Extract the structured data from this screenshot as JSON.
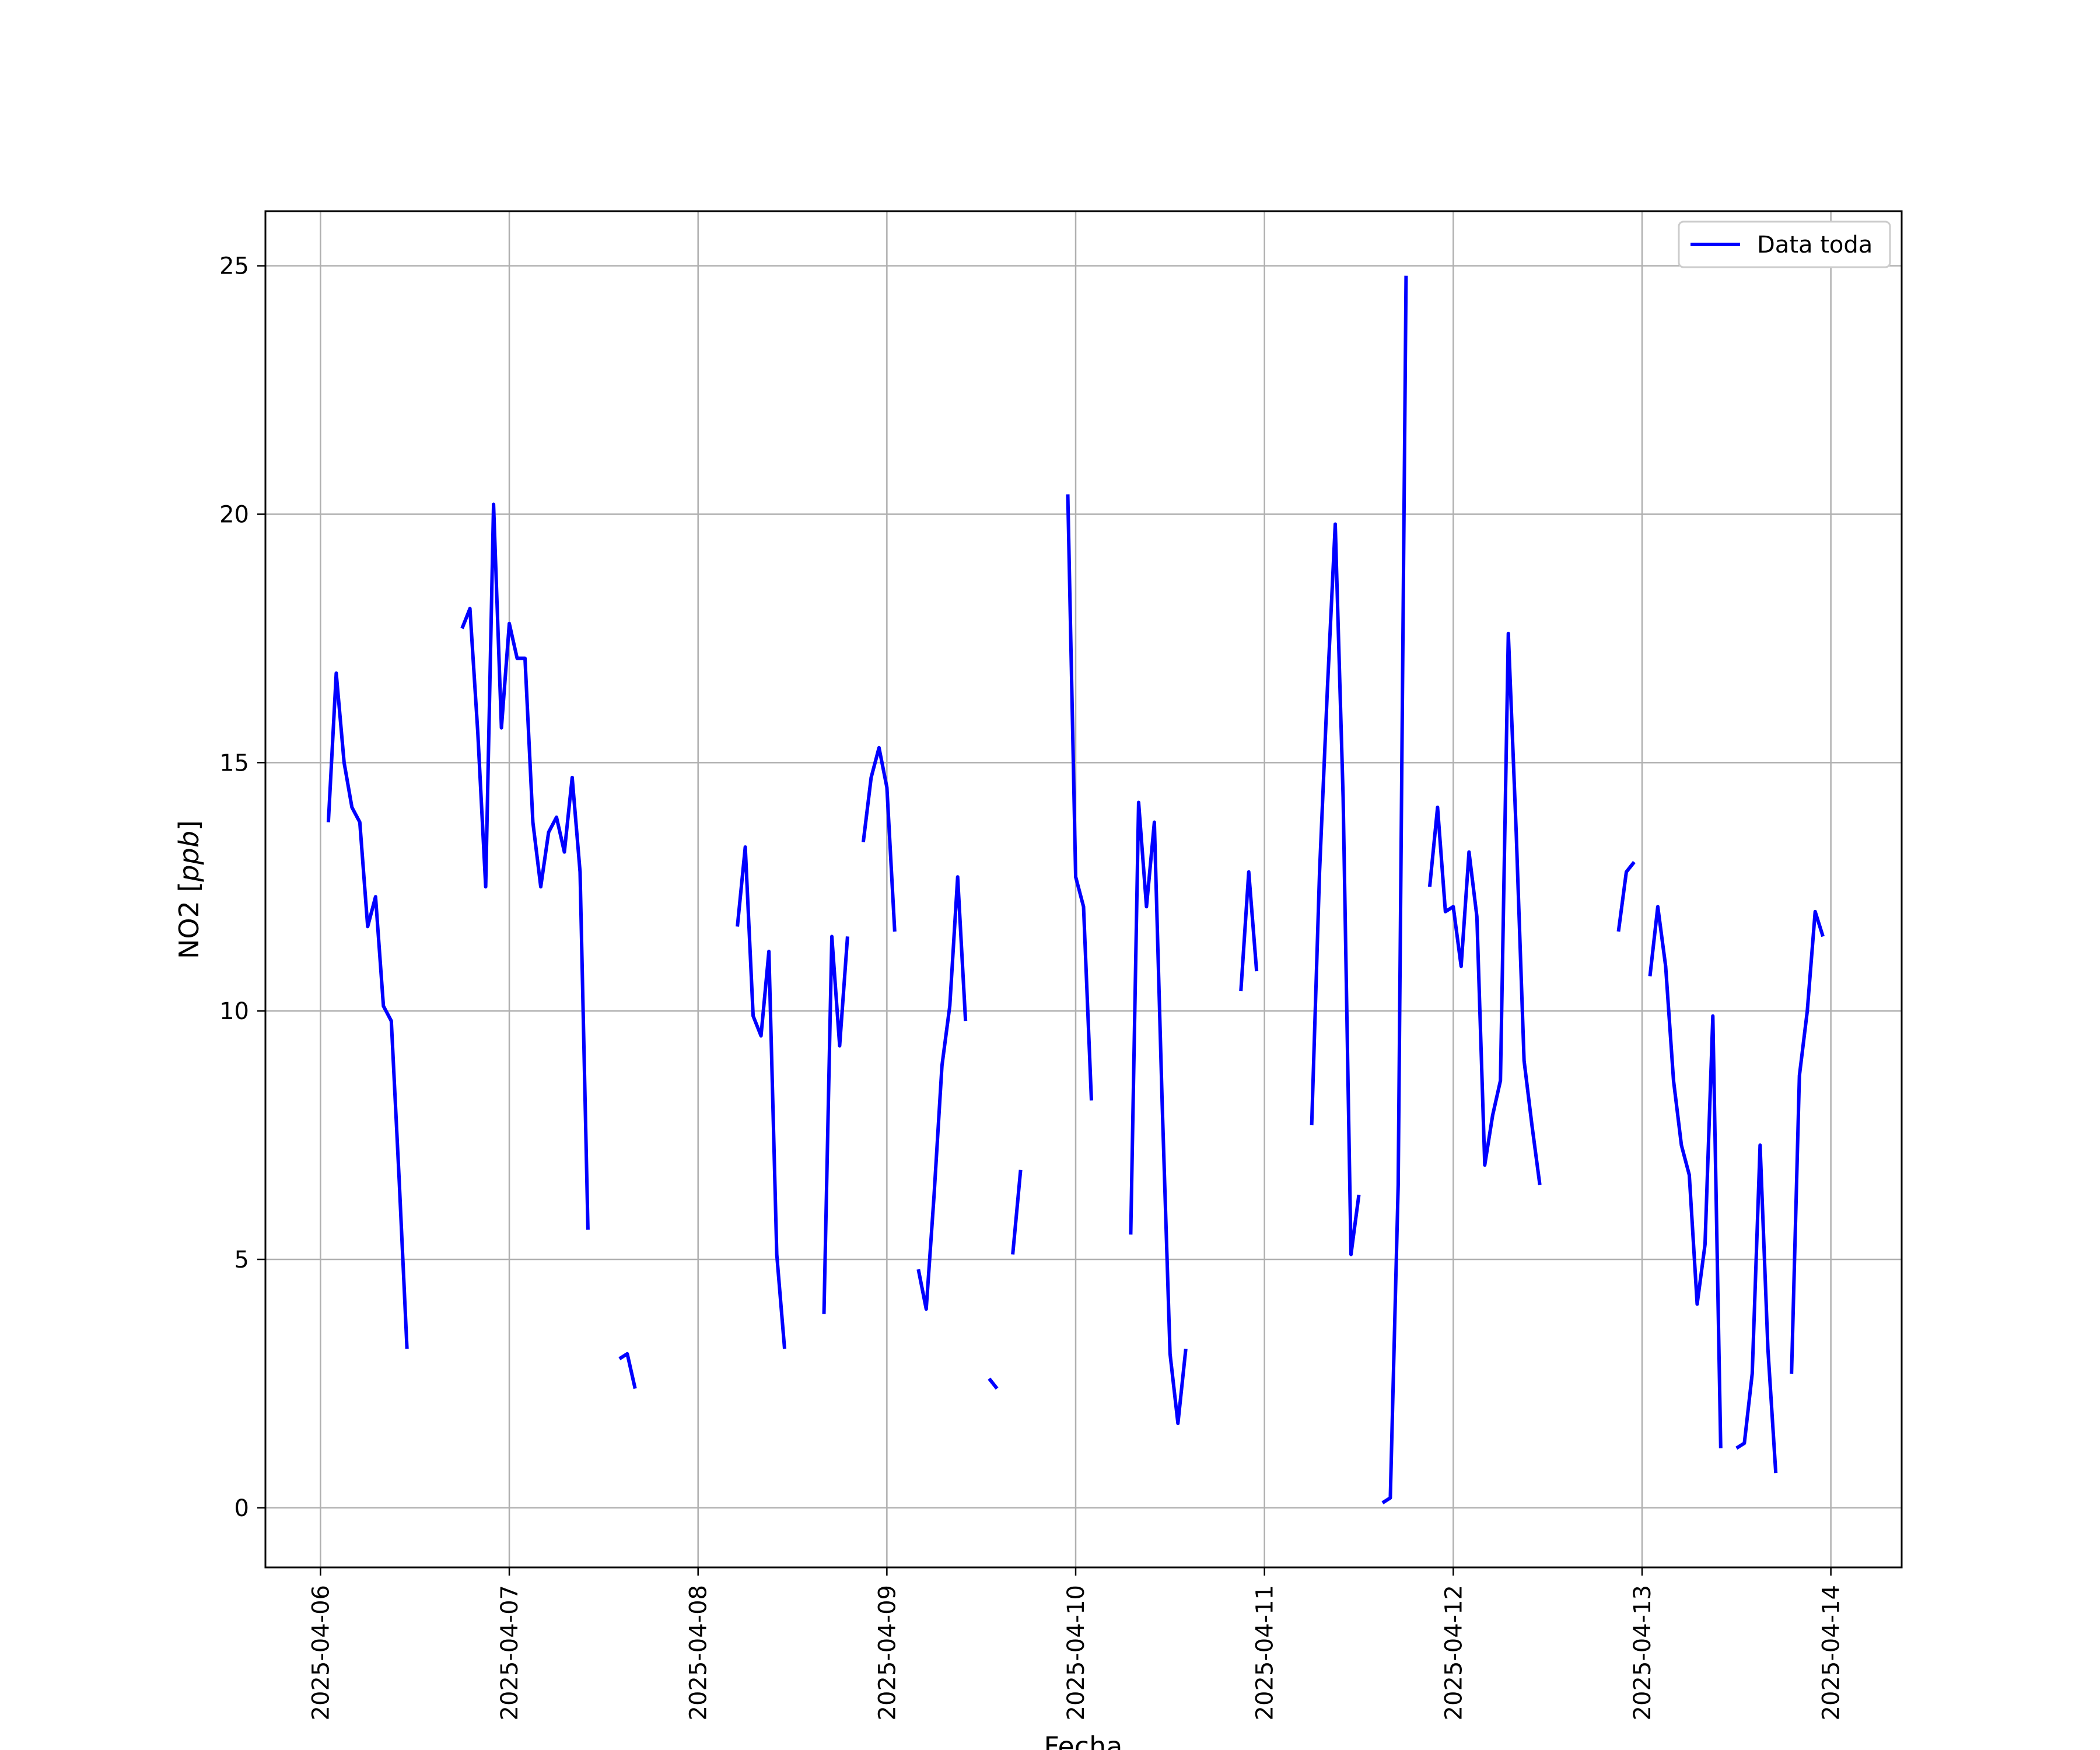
{
  "chart_data": {
    "type": "line",
    "title": "",
    "xlabel": "Fecha",
    "ylabel": "NO2 [ppb]",
    "ylabel_parts": {
      "main": "NO2 [",
      "unit": "ppb",
      "close": "]"
    },
    "xlim": [
      "2025-04-05 17:00",
      "2025-04-14 09:00"
    ],
    "ylim": [
      -1.2,
      26.1
    ],
    "x_ticks": [
      "2025-04-06",
      "2025-04-07",
      "2025-04-08",
      "2025-04-09",
      "2025-04-10",
      "2025-04-11",
      "2025-04-12",
      "2025-04-13",
      "2025-04-14"
    ],
    "y_ticks": [
      0,
      5,
      10,
      15,
      20,
      25
    ],
    "grid": true,
    "legend_position": "top-right",
    "series": [
      {
        "name": "Data toda",
        "color": "#0000ff",
        "segments": [
          [
            [
              "2025-04-06 01:00",
              13.8
            ],
            [
              "2025-04-06 02:00",
              16.8
            ],
            [
              "2025-04-06 03:00",
              15.0
            ],
            [
              "2025-04-06 04:00",
              14.1
            ],
            [
              "2025-04-06 05:00",
              13.8
            ],
            [
              "2025-04-06 06:00",
              11.7
            ],
            [
              "2025-04-06 07:00",
              12.3
            ],
            [
              "2025-04-06 08:00",
              10.1
            ],
            [
              "2025-04-06 09:00",
              9.8
            ],
            [
              "2025-04-06 10:00",
              6.6
            ],
            [
              "2025-04-06 11:00",
              3.2
            ]
          ],
          [
            [
              "2025-04-06 18:00",
              17.7
            ],
            [
              "2025-04-06 19:00",
              18.1
            ],
            [
              "2025-04-06 20:00",
              15.6
            ],
            [
              "2025-04-06 21:00",
              12.5
            ],
            [
              "2025-04-06 22:00",
              20.2
            ],
            [
              "2025-04-06 23:00",
              15.7
            ],
            [
              "2025-04-07 00:00",
              17.8
            ],
            [
              "2025-04-07 01:00",
              17.1
            ],
            [
              "2025-04-07 02:00",
              17.1
            ],
            [
              "2025-04-07 03:00",
              13.8
            ],
            [
              "2025-04-07 04:00",
              12.5
            ],
            [
              "2025-04-07 05:00",
              13.6
            ],
            [
              "2025-04-07 06:00",
              13.9
            ],
            [
              "2025-04-07 07:00",
              13.2
            ],
            [
              "2025-04-07 08:00",
              14.7
            ],
            [
              "2025-04-07 09:00",
              12.8
            ],
            [
              "2025-04-07 10:00",
              5.6
            ]
          ],
          [
            [
              "2025-04-07 14:00",
              3.0
            ],
            [
              "2025-04-07 15:00",
              3.1
            ],
            [
              "2025-04-07 16:00",
              2.4
            ]
          ],
          [
            [
              "2025-04-08 05:00",
              11.7
            ],
            [
              "2025-04-08 06:00",
              13.3
            ],
            [
              "2025-04-08 07:00",
              9.9
            ],
            [
              "2025-04-08 08:00",
              9.5
            ],
            [
              "2025-04-08 09:00",
              11.2
            ],
            [
              "2025-04-08 10:00",
              5.1
            ],
            [
              "2025-04-08 11:00",
              3.2
            ]
          ],
          [
            [
              "2025-04-08 16:00",
              3.9
            ],
            [
              "2025-04-08 17:00",
              11.5
            ],
            [
              "2025-04-08 18:00",
              9.3
            ],
            [
              "2025-04-08 19:00",
              11.5
            ]
          ],
          [
            [
              "2025-04-08 21:00",
              13.4
            ],
            [
              "2025-04-08 22:00",
              14.7
            ],
            [
              "2025-04-08 23:00",
              15.3
            ],
            [
              "2025-04-09 00:00",
              14.5
            ],
            [
              "2025-04-09 01:00",
              11.6
            ]
          ],
          [
            [
              "2025-04-09 04:00",
              4.8
            ],
            [
              "2025-04-09 05:00",
              4.0
            ],
            [
              "2025-04-09 06:00",
              6.3
            ],
            [
              "2025-04-09 07:00",
              8.9
            ],
            [
              "2025-04-09 08:00",
              10.1
            ],
            [
              "2025-04-09 09:00",
              12.7
            ],
            [
              "2025-04-09 10:00",
              9.8
            ]
          ],
          [
            [
              "2025-04-09 13:00",
              2.6
            ],
            [
              "2025-04-09 14:00",
              2.4
            ]
          ],
          [
            [
              "2025-04-09 16:00",
              5.1
            ],
            [
              "2025-04-09 17:00",
              6.8
            ]
          ],
          [
            [
              "2025-04-09 23:00",
              20.4
            ],
            [
              "2025-04-10 00:00",
              12.7
            ],
            [
              "2025-04-10 01:00",
              12.1
            ],
            [
              "2025-04-10 02:00",
              8.2
            ]
          ],
          [
            [
              "2025-04-10 07:00",
              5.5
            ],
            [
              "2025-04-10 08:00",
              14.2
            ],
            [
              "2025-04-10 09:00",
              12.1
            ],
            [
              "2025-04-10 10:00",
              13.8
            ],
            [
              "2025-04-10 11:00",
              8.1
            ],
            [
              "2025-04-10 12:00",
              3.1
            ],
            [
              "2025-04-10 13:00",
              1.7
            ],
            [
              "2025-04-10 14:00",
              3.2
            ]
          ],
          [
            [
              "2025-04-10 21:00",
              10.4
            ],
            [
              "2025-04-10 22:00",
              12.8
            ],
            [
              "2025-04-10 23:00",
              10.8
            ]
          ],
          [
            [
              "2025-04-11 06:00",
              7.7
            ],
            [
              "2025-04-11 07:00",
              12.8
            ],
            [
              "2025-04-11 08:00",
              16.5
            ],
            [
              "2025-04-11 09:00",
              19.8
            ],
            [
              "2025-04-11 10:00",
              14.3
            ],
            [
              "2025-04-11 11:00",
              5.1
            ],
            [
              "2025-04-11 12:00",
              6.3
            ]
          ],
          [
            [
              "2025-04-11 15:00",
              0.1
            ],
            [
              "2025-04-11 16:00",
              0.2
            ],
            [
              "2025-04-11 17:00",
              6.5
            ],
            [
              "2025-04-11 18:00",
              24.8
            ]
          ],
          [
            [
              "2025-04-11 21:00",
              12.5
            ],
            [
              "2025-04-11 22:00",
              14.1
            ],
            [
              "2025-04-11 23:00",
              12.0
            ],
            [
              "2025-04-12 00:00",
              12.1
            ],
            [
              "2025-04-12 01:00",
              10.9
            ],
            [
              "2025-04-12 02:00",
              13.2
            ],
            [
              "2025-04-12 03:00",
              11.9
            ],
            [
              "2025-04-12 04:00",
              6.9
            ],
            [
              "2025-04-12 05:00",
              7.9
            ],
            [
              "2025-04-12 06:00",
              8.6
            ],
            [
              "2025-04-12 07:00",
              17.6
            ],
            [
              "2025-04-12 08:00",
              13.6
            ],
            [
              "2025-04-12 09:00",
              9.0
            ],
            [
              "2025-04-12 10:00",
              7.7
            ],
            [
              "2025-04-12 11:00",
              6.5
            ]
          ],
          [
            [
              "2025-04-12 21:00",
              11.6
            ],
            [
              "2025-04-12 22:00",
              12.8
            ],
            [
              "2025-04-12 23:00",
              13.0
            ]
          ],
          [
            [
              "2025-04-13 01:00",
              10.7
            ],
            [
              "2025-04-13 02:00",
              12.1
            ],
            [
              "2025-04-13 03:00",
              10.9
            ],
            [
              "2025-04-13 04:00",
              8.6
            ],
            [
              "2025-04-13 05:00",
              7.3
            ],
            [
              "2025-04-13 06:00",
              6.7
            ],
            [
              "2025-04-13 07:00",
              4.1
            ],
            [
              "2025-04-13 08:00",
              5.3
            ],
            [
              "2025-04-13 09:00",
              9.9
            ],
            [
              "2025-04-13 10:00",
              1.2
            ]
          ],
          [
            [
              "2025-04-13 12:00",
              1.2
            ],
            [
              "2025-04-13 13:00",
              1.3
            ],
            [
              "2025-04-13 14:00",
              2.7
            ],
            [
              "2025-04-13 15:00",
              7.3
            ],
            [
              "2025-04-13 16:00",
              3.2
            ],
            [
              "2025-04-13 17:00",
              0.7
            ]
          ],
          [
            [
              "2025-04-13 19:00",
              2.7
            ],
            [
              "2025-04-13 20:00",
              8.7
            ],
            [
              "2025-04-13 21:00",
              10.0
            ],
            [
              "2025-04-13 22:00",
              12.0
            ],
            [
              "2025-04-13 23:00",
              11.5
            ]
          ]
        ]
      }
    ]
  }
}
